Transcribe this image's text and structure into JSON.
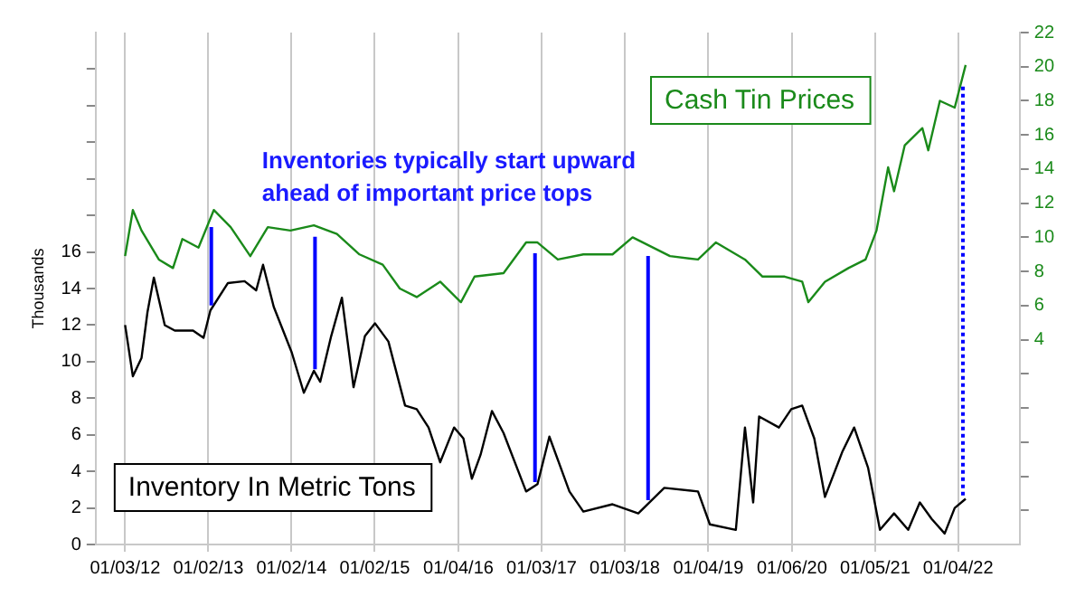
{
  "chart_data": {
    "type": "line",
    "ylabel": "Thousands",
    "grid": "x",
    "legend": false,
    "marker": "none",
    "line_style": "solid",
    "annotations": [
      "Inventories typically start upward ahead of important price tops"
    ],
    "xlim": [
      "2011-08-27",
      "2022-10-01"
    ],
    "xticks": [
      {
        "value": "2012-01-03",
        "label": "01/03/12"
      },
      {
        "value": "2013-01-02",
        "label": "01/02/13"
      },
      {
        "value": "2014-01-02",
        "label": "01/02/14"
      },
      {
        "value": "2015-01-02",
        "label": "01/02/15"
      },
      {
        "value": "2016-01-04",
        "label": "01/04/16"
      },
      {
        "value": "2017-01-03",
        "label": "01/03/17"
      },
      {
        "value": "2018-01-03",
        "label": "01/03/18"
      },
      {
        "value": "2019-01-04",
        "label": "01/04/19"
      },
      {
        "value": "2020-01-06",
        "label": "01/06/20"
      },
      {
        "value": "2021-01-05",
        "label": "01/05/21"
      },
      {
        "value": "2022-01-04",
        "label": "01/04/22"
      }
    ],
    "ylim": [
      0,
      28
    ],
    "yticks": [
      0,
      2,
      4,
      6,
      8,
      10,
      12,
      14,
      16,
      {
        "value": 18,
        "label": null
      },
      {
        "value": 20,
        "label": null
      },
      {
        "value": 22,
        "label": null
      },
      {
        "value": 24,
        "label": null
      },
      {
        "value": 26,
        "label": null
      }
    ],
    "y2lim": [
      -8,
      22
    ],
    "y2ticks": [
      {
        "value": -6,
        "label": null
      },
      {
        "value": -4,
        "label": null
      },
      {
        "value": -2,
        "label": null
      },
      {
        "value": 0,
        "label": null
      },
      {
        "value": 2,
        "label": null
      },
      4,
      6,
      8,
      10,
      12,
      14,
      16,
      18,
      20,
      22
    ],
    "ref_lines": [
      {
        "axis": "x",
        "value": "2013-01-15",
        "color": "#0000ff",
        "line_style": "solid"
      },
      {
        "axis": "x",
        "value": "2014-04-15",
        "color": "#0000ff",
        "line_style": "solid"
      },
      {
        "axis": "x",
        "value": "2016-12-05",
        "color": "#0000ff",
        "line_style": "solid"
      },
      {
        "axis": "x",
        "value": "2018-04-15",
        "color": "#0000ff",
        "line_style": "solid"
      },
      {
        "axis": "x",
        "value": "2022-01-25",
        "color": "#0000ff",
        "line_style": "dotted"
      }
    ],
    "series": [
      {
        "name": "Inventory In Metric Tons",
        "color": "#000000",
        "axis": "y",
        "x": [
          "2012-01-03",
          "2012-02-06",
          "2012-03-15",
          "2012-04-10",
          "2012-05-08",
          "2012-06-25",
          "2012-08-08",
          "2012-10-27",
          "2012-12-12",
          "2013-01-11",
          "2013-03-29",
          "2013-06-10",
          "2013-07-31",
          "2013-08-30",
          "2013-10-16",
          "2014-01-03",
          "2014-02-25",
          "2014-04-10",
          "2014-05-08",
          "2014-06-25",
          "2014-08-11",
          "2014-10-01",
          "2014-11-20",
          "2015-01-03",
          "2015-03-03",
          "2015-05-15",
          "2015-07-05",
          "2015-08-26",
          "2015-10-16",
          "2015-12-16",
          "2016-01-26",
          "2016-03-03",
          "2016-04-10",
          "2016-05-30",
          "2016-07-20",
          "2016-10-27",
          "2016-12-16",
          "2017-02-06",
          "2017-05-05",
          "2017-07-05",
          "2017-11-10",
          "2018-03-03",
          "2018-06-25",
          "2018-11-20",
          "2019-01-11",
          "2019-05-05",
          "2019-06-14",
          "2019-07-20",
          "2019-08-15",
          "2019-11-10",
          "2020-01-03",
          "2020-02-20",
          "2020-04-13",
          "2020-05-30",
          "2020-08-15",
          "2020-10-05",
          "2020-12-05",
          "2021-01-26",
          "2021-03-29",
          "2021-05-30",
          "2021-07-20",
          "2021-09-10",
          "2021-11-06",
          "2021-12-20",
          "2022-02-06"
        ],
        "values": [
          12.0,
          9.2,
          10.2,
          12.7,
          14.6,
          12.0,
          11.7,
          11.7,
          11.3,
          12.8,
          14.3,
          14.4,
          13.9,
          15.3,
          13.0,
          10.5,
          8.3,
          9.5,
          8.9,
          11.4,
          13.5,
          8.6,
          11.4,
          12.1,
          11.1,
          7.6,
          7.4,
          6.4,
          4.5,
          6.4,
          5.8,
          3.6,
          4.9,
          7.3,
          6.1,
          2.9,
          3.3,
          5.9,
          2.9,
          1.8,
          2.2,
          1.7,
          3.1,
          2.9,
          1.1,
          0.8,
          6.4,
          2.3,
          7.0,
          6.4,
          7.4,
          7.6,
          5.8,
          2.6,
          5.1,
          6.4,
          4.2,
          0.8,
          1.7,
          0.8,
          2.3,
          1.4,
          0.6,
          2.0,
          2.5
        ]
      },
      {
        "name": "Cash Tin Prices",
        "color": "#1a8a1a",
        "axis": "y2",
        "x": [
          "2012-01-03",
          "2012-02-06",
          "2012-03-15",
          "2012-05-30",
          "2012-07-31",
          "2012-09-10",
          "2012-11-20",
          "2013-01-26",
          "2013-04-10",
          "2013-07-05",
          "2013-09-20",
          "2013-12-28",
          "2014-04-10",
          "2014-07-20",
          "2014-10-27",
          "2015-02-06",
          "2015-04-22",
          "2015-07-05",
          "2015-10-16",
          "2016-01-15",
          "2016-03-15",
          "2016-07-20",
          "2016-10-27",
          "2016-12-16",
          "2017-03-15",
          "2017-07-05",
          "2017-11-10",
          "2018-02-06",
          "2018-07-20",
          "2018-11-20",
          "2019-02-06",
          "2019-06-14",
          "2019-08-30",
          "2019-12-05",
          "2020-02-20",
          "2020-03-18",
          "2020-05-30",
          "2020-09-10",
          "2020-11-24",
          "2021-01-11",
          "2021-03-03",
          "2021-03-29",
          "2021-05-15",
          "2021-07-31",
          "2021-08-26",
          "2021-10-16",
          "2021-12-20",
          "2022-02-06"
        ],
        "values": [
          8.9,
          11.6,
          10.4,
          8.7,
          8.2,
          9.9,
          9.4,
          11.6,
          10.6,
          8.9,
          10.6,
          10.4,
          10.7,
          10.2,
          9.0,
          8.4,
          7.0,
          6.5,
          7.4,
          6.2,
          7.7,
          7.9,
          9.7,
          9.7,
          8.7,
          9.0,
          9.0,
          10.0,
          8.9,
          8.7,
          9.7,
          8.7,
          7.7,
          7.7,
          7.4,
          6.2,
          7.4,
          8.2,
          8.7,
          10.4,
          14.1,
          12.7,
          15.4,
          16.4,
          15.1,
          18.0,
          17.6,
          20.1
        ]
      }
    ]
  }
}
